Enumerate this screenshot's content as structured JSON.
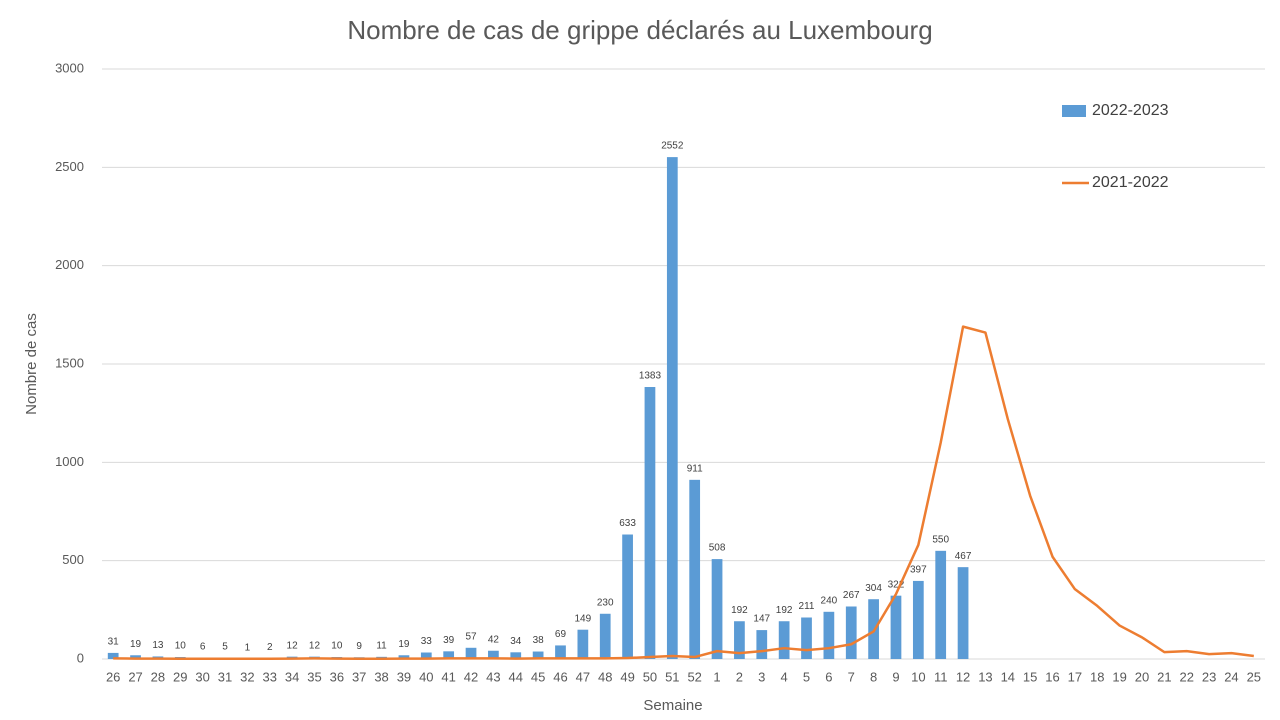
{
  "chart_data": {
    "type": "bar",
    "title": "Nombre de cas de grippe déclarés au Luxembourg",
    "x_label": "Semaine",
    "y_label": "Nombre de cas",
    "categories": [
      "26",
      "27",
      "28",
      "29",
      "30",
      "31",
      "32",
      "33",
      "34",
      "35",
      "36",
      "37",
      "38",
      "39",
      "40",
      "41",
      "42",
      "43",
      "44",
      "45",
      "46",
      "47",
      "48",
      "49",
      "50",
      "51",
      "52",
      "1",
      "2",
      "3",
      "4",
      "5",
      "6",
      "7",
      "8",
      "9",
      "10",
      "11",
      "12",
      "13",
      "14",
      "15",
      "16",
      "17",
      "18",
      "19",
      "20",
      "21",
      "22",
      "23",
      "24",
      "25"
    ],
    "series": [
      {
        "name": "2022-2023",
        "type": "bar",
        "color": "#5b9bd5",
        "values": [
          31,
          19,
          13,
          10,
          6,
          5,
          1,
          2,
          12,
          12,
          10,
          9,
          11,
          19,
          33,
          39,
          57,
          42,
          34,
          38,
          69,
          149,
          230,
          633,
          1383,
          2552,
          911,
          508,
          192,
          147,
          192,
          211,
          240,
          267,
          304,
          322,
          397,
          550,
          467,
          null,
          null,
          null,
          null,
          null,
          null,
          null,
          null,
          null,
          null,
          null,
          null,
          null
        ]
      },
      {
        "name": "2021-2022",
        "type": "line",
        "color": "#ed7d31",
        "values": [
          3,
          2,
          2,
          1,
          1,
          1,
          1,
          1,
          2,
          3,
          2,
          1,
          1,
          2,
          2,
          3,
          3,
          3,
          2,
          3,
          3,
          3,
          3,
          5,
          10,
          15,
          10,
          40,
          30,
          40,
          55,
          45,
          55,
          75,
          140,
          330,
          580,
          1100,
          1690,
          1660,
          1220,
          830,
          520,
          355,
          270,
          170,
          110,
          35,
          40,
          25,
          30,
          15
        ]
      }
    ],
    "ylim": [
      0,
      3000
    ],
    "yticks": [
      0,
      500,
      1000,
      1500,
      2000,
      2500,
      3000
    ],
    "grid": true,
    "legend": "upper right"
  }
}
